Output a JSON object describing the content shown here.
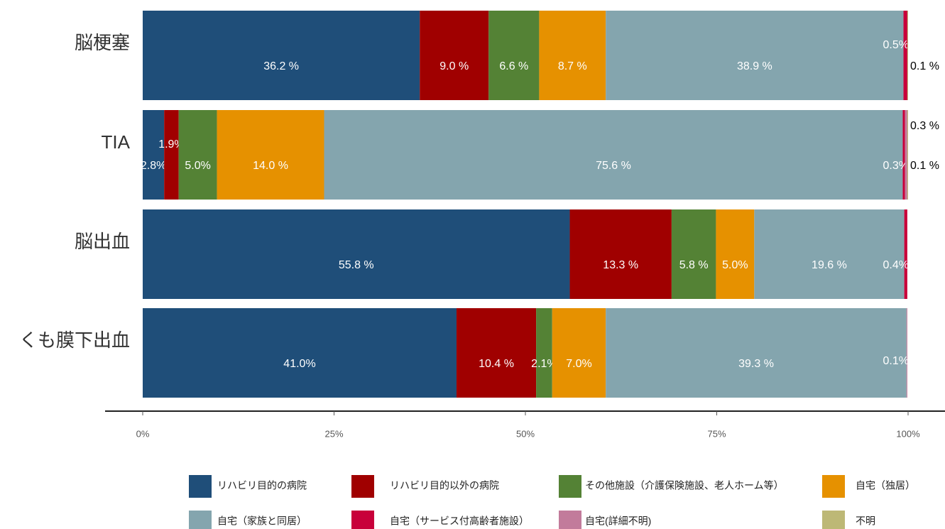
{
  "chart_data": {
    "type": "stacked_bar_horizontal",
    "categories": [
      "脳梗塞",
      "TIA",
      "脳出血",
      "くも膜下出血"
    ],
    "series": [
      {
        "name": "リハビリ目的の病院",
        "color": "#1f4e79",
        "values": [
          36.2,
          2.8,
          55.8,
          41.0
        ],
        "value_labels": [
          "36.2 %",
          "2.8%",
          "55.8 %",
          "41.0%"
        ]
      },
      {
        "name": "リハビリ目的以外の病院",
        "color": "#a00000",
        "values": [
          9.0,
          1.9,
          13.3,
          10.4
        ],
        "value_labels": [
          "9.0 %",
          "1.9%",
          "13.3 %",
          "10.4 %"
        ]
      },
      {
        "name": "その他施設（介護保険施設、老人ホーム等）",
        "color": "#548235",
        "values": [
          6.6,
          5.0,
          5.8,
          2.1
        ],
        "value_labels": [
          "6.6 %",
          "5.0%",
          "5.8 %",
          "2.1%"
        ]
      },
      {
        "name": "自宅（独居）",
        "color": "#e69100",
        "values": [
          8.7,
          14.0,
          5.0,
          7.0
        ],
        "value_labels": [
          "8.7 %",
          "14.0 %",
          "5.0%",
          "7.0%"
        ]
      },
      {
        "name": "自宅（家族と同居）",
        "color": "#84a5ae",
        "values": [
          38.9,
          75.6,
          19.6,
          39.3
        ],
        "value_labels": [
          "38.9 %",
          "75.6 %",
          "19.6 %",
          "39.3 %"
        ]
      },
      {
        "name": "自宅（サービス付高齢者施設）",
        "color": "#c8003a",
        "values": [
          0.5,
          0.3,
          0.4,
          null
        ],
        "value_labels": [
          "0.5%",
          "0.3%",
          "0.4%",
          null
        ]
      },
      {
        "name": "自宅(詳細不明)",
        "color": "#c27b9b",
        "values": [
          null,
          0.3,
          null,
          0.1
        ],
        "value_labels": [
          null,
          "0.3 %",
          null,
          "0.1%"
        ]
      },
      {
        "name": "不明",
        "color": "#bdb876",
        "values": [
          0.1,
          0.1,
          null,
          null
        ],
        "value_labels": [
          "0.1 %",
          "0.1 %",
          null,
          null
        ]
      }
    ],
    "xlim": [
      0,
      100
    ],
    "xticks": [
      {
        "value": 0,
        "label": "0%"
      },
      {
        "value": 25,
        "label": "25%"
      },
      {
        "value": 50,
        "label": "50%"
      },
      {
        "value": 75,
        "label": "75%"
      },
      {
        "value": 100,
        "label": "100%"
      }
    ]
  }
}
